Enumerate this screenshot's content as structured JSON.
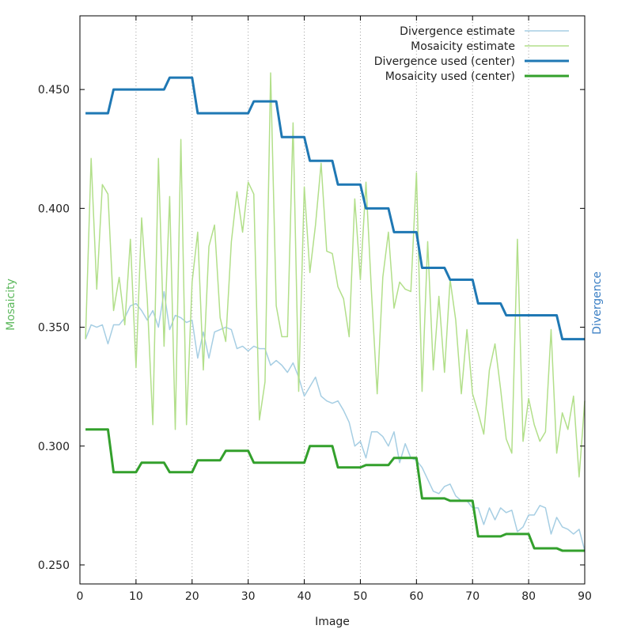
{
  "chart_data": {
    "type": "line",
    "title": "",
    "xlabel": "Image",
    "ylabel_left": "Mosaicity",
    "ylabel_right": "Divergence",
    "xlim": [
      0,
      90
    ],
    "ylim": [
      0.242,
      0.481
    ],
    "x_ticks": [
      0,
      10,
      20,
      30,
      40,
      50,
      60,
      70,
      80,
      90
    ],
    "y_ticks": [
      0.25,
      0.3,
      0.35,
      0.4,
      0.45
    ],
    "y_tick_labels": [
      "0.250",
      "0.300",
      "0.350",
      "0.400",
      "0.450"
    ],
    "grid": "vertical dotted at x ticks",
    "legend_position": "top-right",
    "colors": {
      "divergence_axis": "#3b7fc4",
      "mosaicity_axis": "#5cb85c"
    },
    "series": [
      {
        "name": "Divergence estimate",
        "color": "#a6cee3",
        "width": 1.5,
        "x": [
          1,
          2,
          3,
          4,
          5,
          6,
          7,
          8,
          9,
          10,
          11,
          12,
          13,
          14,
          15,
          16,
          17,
          18,
          19,
          20,
          21,
          22,
          23,
          24,
          25,
          26,
          27,
          28,
          29,
          30,
          31,
          32,
          33,
          34,
          35,
          36,
          37,
          38,
          39,
          40,
          41,
          42,
          43,
          44,
          45,
          46,
          47,
          48,
          49,
          50,
          51,
          52,
          53,
          54,
          55,
          56,
          57,
          58,
          59,
          60,
          61,
          62,
          63,
          64,
          65,
          66,
          67,
          68,
          69,
          70,
          71,
          72,
          73,
          74,
          75,
          76,
          77,
          78,
          79,
          80,
          81,
          82,
          83,
          84,
          85,
          86,
          87,
          88,
          89,
          90
        ],
        "y": [
          0.345,
          0.351,
          0.35,
          0.351,
          0.343,
          0.351,
          0.351,
          0.354,
          0.359,
          0.36,
          0.357,
          0.353,
          0.357,
          0.35,
          0.365,
          0.349,
          0.355,
          0.354,
          0.352,
          0.353,
          0.337,
          0.348,
          0.337,
          0.348,
          0.349,
          0.35,
          0.349,
          0.341,
          0.342,
          0.34,
          0.342,
          0.341,
          0.341,
          0.334,
          0.336,
          0.334,
          0.331,
          0.335,
          0.329,
          0.321,
          0.325,
          0.329,
          0.321,
          0.319,
          0.318,
          0.319,
          0.315,
          0.31,
          0.3,
          0.302,
          0.295,
          0.306,
          0.306,
          0.304,
          0.3,
          0.306,
          0.293,
          0.301,
          0.295,
          0.294,
          0.291,
          0.286,
          0.281,
          0.28,
          0.283,
          0.284,
          0.279,
          0.277,
          0.277,
          0.274,
          0.274,
          0.267,
          0.274,
          0.269,
          0.274,
          0.272,
          0.273,
          0.264,
          0.266,
          0.271,
          0.271,
          0.275,
          0.274,
          0.263,
          0.27,
          0.266,
          0.265,
          0.263,
          0.265,
          0.256
        ]
      },
      {
        "name": "Mosaicity estimate",
        "color": "#b2df8a",
        "width": 1.5,
        "x": [
          1,
          2,
          3,
          4,
          5,
          6,
          7,
          8,
          9,
          10,
          11,
          12,
          13,
          14,
          15,
          16,
          17,
          18,
          19,
          20,
          21,
          22,
          23,
          24,
          25,
          26,
          27,
          28,
          29,
          30,
          31,
          32,
          33,
          34,
          35,
          36,
          37,
          38,
          39,
          40,
          41,
          42,
          43,
          44,
          45,
          46,
          47,
          48,
          49,
          50,
          51,
          52,
          53,
          54,
          55,
          56,
          57,
          58,
          59,
          60,
          61,
          62,
          63,
          64,
          65,
          66,
          67,
          68,
          69,
          70,
          71,
          72,
          73,
          74,
          75,
          76,
          77,
          78,
          79,
          80,
          81,
          82,
          83,
          84,
          85,
          86,
          87,
          88,
          89,
          90
        ],
        "y": [
          0.345,
          0.421,
          0.366,
          0.41,
          0.406,
          0.357,
          0.371,
          0.351,
          0.387,
          0.333,
          0.396,
          0.362,
          0.309,
          0.421,
          0.342,
          0.405,
          0.307,
          0.429,
          0.309,
          0.369,
          0.39,
          0.332,
          0.384,
          0.393,
          0.354,
          0.344,
          0.386,
          0.407,
          0.39,
          0.411,
          0.406,
          0.311,
          0.327,
          0.457,
          0.359,
          0.346,
          0.346,
          0.436,
          0.323,
          0.409,
          0.373,
          0.393,
          0.419,
          0.382,
          0.381,
          0.367,
          0.362,
          0.346,
          0.404,
          0.37,
          0.411,
          0.364,
          0.322,
          0.371,
          0.39,
          0.358,
          0.369,
          0.366,
          0.365,
          0.415,
          0.323,
          0.386,
          0.332,
          0.363,
          0.331,
          0.37,
          0.353,
          0.322,
          0.349,
          0.322,
          0.314,
          0.305,
          0.332,
          0.343,
          0.324,
          0.303,
          0.297,
          0.387,
          0.302,
          0.32,
          0.309,
          0.302,
          0.306,
          0.349,
          0.297,
          0.314,
          0.307,
          0.321,
          0.287,
          0.319
        ]
      },
      {
        "name": "Divergence used (center)",
        "color": "#1f78b4",
        "width": 3,
        "x": [
          1,
          5,
          6,
          15,
          16,
          20,
          21,
          30,
          31,
          35,
          36,
          40,
          41,
          45,
          46,
          50,
          51,
          55,
          56,
          60,
          61,
          65,
          66,
          70,
          71,
          75,
          76,
          85,
          86,
          90
        ],
        "y": [
          0.44,
          0.44,
          0.45,
          0.45,
          0.455,
          0.455,
          0.44,
          0.44,
          0.445,
          0.445,
          0.43,
          0.43,
          0.42,
          0.42,
          0.41,
          0.41,
          0.4,
          0.4,
          0.39,
          0.39,
          0.375,
          0.375,
          0.37,
          0.37,
          0.36,
          0.36,
          0.355,
          0.355,
          0.345,
          0.345
        ]
      },
      {
        "name": "Mosaicity used (center)",
        "color": "#33a02c",
        "width": 3,
        "x": [
          1,
          5,
          6,
          10,
          11,
          15,
          16,
          20,
          21,
          25,
          26,
          30,
          31,
          40,
          41,
          45,
          46,
          50,
          51,
          55,
          56,
          60,
          61,
          65,
          66,
          70,
          71,
          75,
          76,
          80,
          81,
          85,
          86,
          90
        ],
        "y": [
          0.307,
          0.307,
          0.289,
          0.289,
          0.293,
          0.293,
          0.289,
          0.289,
          0.294,
          0.294,
          0.298,
          0.298,
          0.293,
          0.293,
          0.3,
          0.3,
          0.291,
          0.291,
          0.292,
          0.292,
          0.295,
          0.295,
          0.278,
          0.278,
          0.277,
          0.277,
          0.262,
          0.262,
          0.263,
          0.263,
          0.257,
          0.257,
          0.256,
          0.256
        ]
      }
    ]
  }
}
